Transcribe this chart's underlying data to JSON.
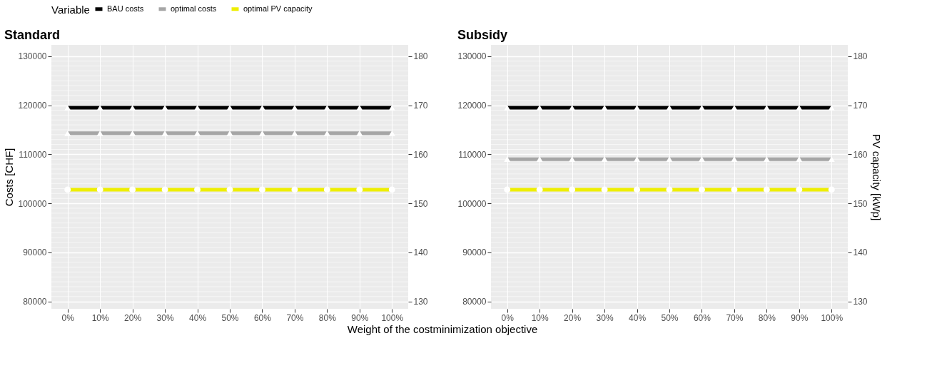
{
  "chart_data": [
    {
      "type": "line",
      "title": "Standard",
      "xlabel": "Weight of the costminimization objective",
      "ylabel": "Costs [CHF]",
      "legend_title": "Variable",
      "legend": "top",
      "grid": true,
      "line_style": "solid",
      "categories": [
        "0%",
        "10%",
        "20%",
        "30%",
        "40%",
        "50%",
        "60%",
        "70%",
        "80%",
        "90%",
        "100%"
      ],
      "ylim": [
        78500,
        132300
      ],
      "yticks": [
        80000,
        90000,
        100000,
        110000,
        120000,
        130000
      ],
      "y2lim": [
        128.5,
        182.3
      ],
      "y2ticks": [
        130,
        140,
        150,
        160,
        170,
        180
      ],
      "series": [
        {
          "name": "BAU costs",
          "color": "#000000",
          "marker": "triangle",
          "values": [
            119500,
            119500,
            119500,
            119500,
            119500,
            119500,
            119500,
            119500,
            119500,
            119500,
            119500
          ]
        },
        {
          "name": "optimal costs",
          "color": "#a6a6a6",
          "marker": "triangle",
          "values": [
            114300,
            114300,
            114300,
            114300,
            114300,
            114300,
            114300,
            114300,
            114300,
            114300,
            114300
          ]
        },
        {
          "name": "optimal PV capacity",
          "color": "#eeee00",
          "marker": "circle",
          "axis": "y2",
          "values": [
            152.8,
            152.8,
            152.8,
            152.8,
            152.8,
            152.8,
            152.8,
            152.8,
            152.8,
            152.8,
            152.8
          ]
        }
      ]
    },
    {
      "type": "line",
      "title": "Subsidy",
      "y2label": "PV capacity [kWp]",
      "legend": "top",
      "grid": true,
      "line_style": "solid",
      "categories": [
        "0%",
        "10%",
        "20%",
        "30%",
        "40%",
        "50%",
        "60%",
        "70%",
        "80%",
        "90%",
        "100%"
      ],
      "ylim": [
        78500,
        132300
      ],
      "yticks": [
        80000,
        90000,
        100000,
        110000,
        120000,
        130000
      ],
      "y2lim": [
        128.5,
        182.3
      ],
      "y2ticks": [
        130,
        140,
        150,
        160,
        170,
        180
      ],
      "series": [
        {
          "name": "BAU costs",
          "color": "#000000",
          "marker": "triangle",
          "values": [
            119500,
            119500,
            119500,
            119500,
            119500,
            119500,
            119500,
            119500,
            119500,
            119500,
            119500
          ]
        },
        {
          "name": "optimal costs",
          "color": "#a6a6a6",
          "marker": "triangle",
          "values": [
            109000,
            109000,
            109000,
            109000,
            109000,
            109000,
            109000,
            109000,
            109000,
            109000,
            109000
          ]
        },
        {
          "name": "optimal PV capacity",
          "color": "#eeee00",
          "marker": "circle",
          "axis": "y2",
          "values": [
            152.8,
            152.8,
            152.8,
            152.8,
            152.8,
            152.8,
            152.8,
            152.8,
            152.8,
            152.8,
            152.8
          ]
        }
      ]
    }
  ]
}
